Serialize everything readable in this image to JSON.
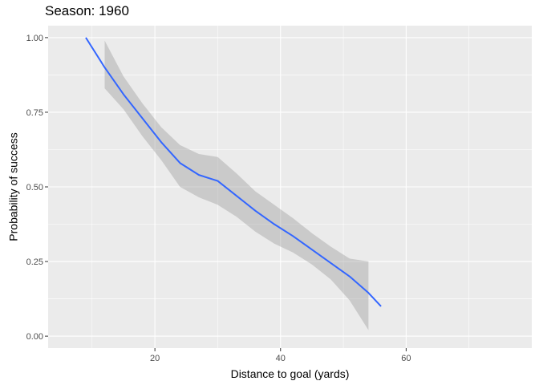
{
  "title": "Season: 1960",
  "chart_data": {
    "type": "line",
    "title": "Season: 1960",
    "xlabel": "Distance to goal (yards)",
    "ylabel": "Probability of success",
    "xlim": [
      3,
      80
    ],
    "ylim": [
      -0.04,
      1.04
    ],
    "x_ticks": [
      20,
      40,
      60
    ],
    "y_ticks": [
      0.0,
      0.25,
      0.5,
      0.75,
      1.0
    ],
    "x_tick_labels": [
      "20",
      "40",
      "60"
    ],
    "y_tick_labels": [
      "0.00",
      "0.25",
      "0.50",
      "0.75",
      "1.00"
    ],
    "x_minor_gridlines": [
      10,
      30,
      50,
      70
    ],
    "y_minor_gridlines": [
      0.125,
      0.375,
      0.625,
      0.875
    ],
    "grid": true,
    "background": "#ebebeb",
    "series": [
      {
        "color": "#3366ff",
        "x": [
          9,
          12,
          15,
          18,
          21,
          24,
          27,
          30,
          33,
          36,
          39,
          42,
          45,
          48,
          51,
          54,
          56
        ],
        "y": [
          1.0,
          0.9,
          0.81,
          0.73,
          0.65,
          0.58,
          0.54,
          0.52,
          0.47,
          0.42,
          0.375,
          0.335,
          0.29,
          0.245,
          0.2,
          0.145,
          0.1
        ]
      }
    ],
    "confidence_band": {
      "color": "#999999",
      "opacity": 0.4,
      "x": [
        12,
        15,
        18,
        21,
        24,
        27,
        30,
        33,
        36,
        39,
        42,
        45,
        48,
        51,
        54
      ],
      "lower": [
        0.83,
        0.76,
        0.67,
        0.59,
        0.5,
        0.465,
        0.44,
        0.4,
        0.35,
        0.31,
        0.28,
        0.24,
        0.19,
        0.12,
        0.02
      ],
      "upper": [
        0.99,
        0.87,
        0.78,
        0.7,
        0.64,
        0.61,
        0.6,
        0.545,
        0.485,
        0.44,
        0.395,
        0.345,
        0.3,
        0.26,
        0.25
      ]
    }
  }
}
